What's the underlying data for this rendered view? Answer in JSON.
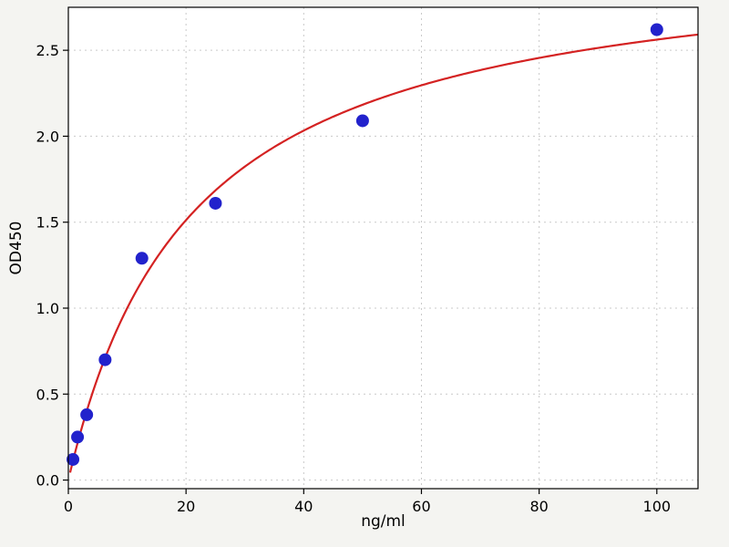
{
  "chart_data": {
    "type": "scatter",
    "title": "",
    "xlabel": "ng/ml",
    "ylabel": "OD450",
    "xlim": [
      0,
      107
    ],
    "ylim": [
      -0.05,
      2.75
    ],
    "xticks": [
      0,
      20,
      40,
      60,
      80,
      100
    ],
    "yticks": [
      0.0,
      0.5,
      1.0,
      1.5,
      2.0,
      2.5
    ],
    "grid": true,
    "legend": "none",
    "points": [
      {
        "x": 0.78,
        "y": 0.12
      },
      {
        "x": 1.56,
        "y": 0.25
      },
      {
        "x": 3.12,
        "y": 0.38
      },
      {
        "x": 6.25,
        "y": 0.7
      },
      {
        "x": 12.5,
        "y": 1.29
      },
      {
        "x": 25,
        "y": 1.61
      },
      {
        "x": 50,
        "y": 2.09
      },
      {
        "x": 100,
        "y": 2.62
      }
    ],
    "fit_curve": {
      "model": "michaelis_menten",
      "vmax": 3.1,
      "km": 21,
      "x_range": [
        0.3,
        107
      ]
    },
    "colors": {
      "points": "#2222cc",
      "curve": "#d42222",
      "grid": "#c9c9c9",
      "frame": "#000000",
      "text": "#000000",
      "plot_bg": "#ffffff",
      "figure_bg": "#f4f4f1"
    }
  }
}
